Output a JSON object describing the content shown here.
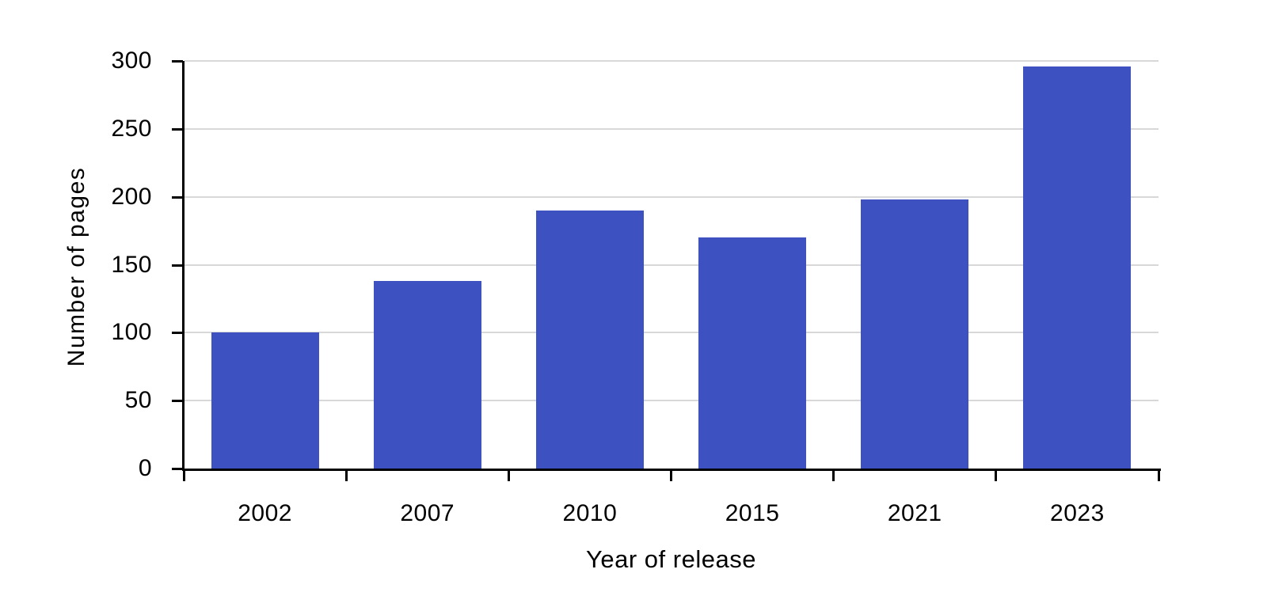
{
  "chart_data": {
    "type": "bar",
    "title": "",
    "categories": [
      "2002",
      "2007",
      "2010",
      "2015",
      "2021",
      "2023"
    ],
    "values": [
      100,
      138,
      190,
      170,
      198,
      296
    ],
    "xlabel": "Year of release",
    "ylabel": "Number of pages",
    "ylim": [
      0,
      300
    ],
    "yticks": [
      0,
      50,
      100,
      150,
      200,
      250,
      300
    ],
    "grid": "horizontal",
    "legend": "none",
    "bar_color": "#3E51C1",
    "axis_color": "#000000",
    "gridline_color": "#D8D8D8",
    "background_color": "#FFFFFF"
  }
}
